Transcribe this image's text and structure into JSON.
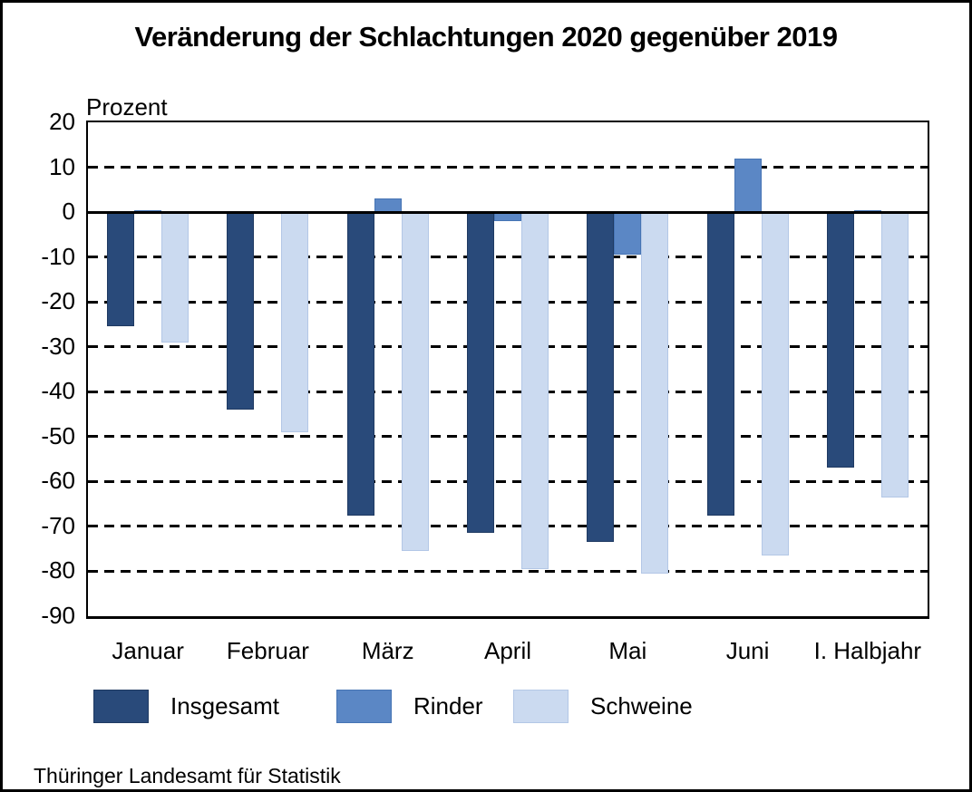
{
  "title": "Veränderung der Schlachtungen 2020 gegenüber 2019",
  "unit_label": "Prozent",
  "source": "Thüringer Landesamt für Statistik",
  "colors": {
    "insgesamt_fill": "#294a7a",
    "insgesamt_border": "#1f3a62",
    "rinder_fill": "#5b87c5",
    "rinder_border": "#4674b4",
    "schweine_fill": "#cbdaf0",
    "schweine_border": "#b3c7e6",
    "grid": "#000000"
  },
  "chart_data": {
    "type": "bar",
    "title": "Veränderung der Schlachtungen 2020 gegenüber 2019",
    "xlabel": "",
    "ylabel": "Prozent",
    "categories": [
      "Januar",
      "Februar",
      "März",
      "April",
      "Mai",
      "Juni",
      "I. Halbjahr"
    ],
    "series": [
      {
        "name": "Insgesamt",
        "color": "#294a7a",
        "border": "#1f3a62",
        "values": [
          -25.5,
          -44,
          -67.5,
          -71.5,
          -73.5,
          -67.5,
          -57
        ]
      },
      {
        "name": "Rinder",
        "color": "#5b87c5",
        "border": "#4674b4",
        "values": [
          0.5,
          -0.2,
          3,
          -2,
          -9.5,
          12,
          0.5
        ]
      },
      {
        "name": "Schweine",
        "color": "#cbdaf0",
        "border": "#b3c7e6",
        "values": [
          -29,
          -49,
          -75.5,
          -79.5,
          -80.5,
          -76.5,
          -63.5
        ]
      }
    ],
    "ylim": [
      -90,
      20
    ],
    "yticks": [
      20,
      10,
      0,
      -10,
      -20,
      -30,
      -40,
      -50,
      -60,
      -70,
      -80,
      -90
    ],
    "grid": "horizontal dashed, solid zero line",
    "legend_position": "bottom"
  },
  "legend": {
    "items": [
      {
        "label": "Insgesamt"
      },
      {
        "label": "Rinder"
      },
      {
        "label": "Schweine"
      }
    ]
  }
}
